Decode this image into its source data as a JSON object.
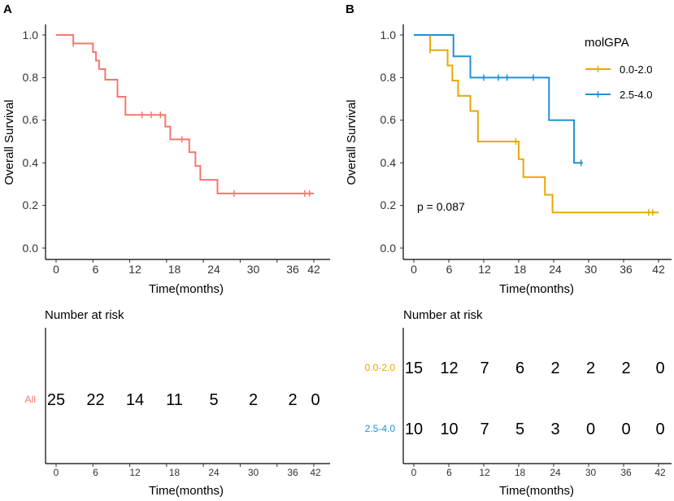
{
  "chart_data": [
    {
      "panel": "A",
      "type": "line",
      "subtype": "kaplan-meier",
      "xlabel": "Time(months)",
      "ylabel": "Overall Survival",
      "xlim": [
        0,
        42
      ],
      "ylim": [
        0,
        1
      ],
      "xticks": [
        0,
        6,
        12,
        18,
        24,
        30,
        36,
        42
      ],
      "yticks": [
        0.0,
        0.2,
        0.4,
        0.6,
        0.8,
        1.0
      ],
      "ytick_labels": [
        "0.0",
        "0.2",
        "0.4",
        "0.6",
        "0.8",
        "1.0"
      ],
      "series": [
        {
          "name": "All",
          "color": "#F8766D",
          "steps": [
            [
              0,
              1.0
            ],
            [
              2.8,
              0.96
            ],
            [
              6.0,
              0.92
            ],
            [
              6.5,
              0.88
            ],
            [
              7.0,
              0.84
            ],
            [
              8.0,
              0.79
            ],
            [
              10.0,
              0.71
            ],
            [
              11.3,
              0.625
            ],
            [
              17.8,
              0.57
            ],
            [
              18.6,
              0.51
            ],
            [
              21.7,
              0.45
            ],
            [
              22.7,
              0.385
            ],
            [
              23.5,
              0.32
            ],
            [
              26.3,
              0.256
            ],
            [
              42.0,
              0.256
            ]
          ],
          "censor": [
            [
              2.8,
              0.96
            ],
            [
              14.0,
              0.625
            ],
            [
              15.5,
              0.625
            ],
            [
              17.0,
              0.625
            ],
            [
              20.5,
              0.51
            ],
            [
              29.0,
              0.256
            ],
            [
              40.5,
              0.256
            ],
            [
              41.3,
              0.256
            ]
          ]
        }
      ],
      "risk_table": {
        "title": "Number at risk",
        "xlabel": "Time(months)",
        "rows": [
          {
            "label": "All",
            "color": "#F8766D",
            "counts": [
              "25",
              "22",
              "14",
              "11",
              "5",
              "2",
              "2",
              "0"
            ]
          }
        ]
      }
    },
    {
      "panel": "B",
      "type": "line",
      "subtype": "kaplan-meier",
      "xlabel": "Time(months)",
      "ylabel": "Overall Survival",
      "xlim": [
        0,
        42
      ],
      "ylim": [
        0,
        1
      ],
      "xticks": [
        0,
        6,
        12,
        18,
        24,
        30,
        36,
        42
      ],
      "yticks": [
        0.0,
        0.2,
        0.4,
        0.6,
        0.8,
        1.0
      ],
      "ytick_labels": [
        "0.0",
        "0.2",
        "0.4",
        "0.6",
        "0.8",
        "1.0"
      ],
      "legend_title": "molGPA",
      "legend_position": "top-right",
      "annotation": "p = 0.087",
      "series": [
        {
          "name": "0.0-2.0",
          "color": "#E7A800",
          "steps": [
            [
              0,
              1.0
            ],
            [
              2.8,
              0.929
            ],
            [
              5.8,
              0.857
            ],
            [
              6.6,
              0.786
            ],
            [
              7.6,
              0.714
            ],
            [
              9.7,
              0.643
            ],
            [
              11.0,
              0.5
            ],
            [
              18.0,
              0.417
            ],
            [
              18.8,
              0.333
            ],
            [
              22.5,
              0.25
            ],
            [
              23.8,
              0.167
            ],
            [
              42.0,
              0.167
            ]
          ],
          "censor": [
            [
              2.8,
              0.929
            ],
            [
              17.5,
              0.5
            ],
            [
              40.3,
              0.167
            ],
            [
              41.0,
              0.167
            ]
          ]
        },
        {
          "name": "2.5-4.0",
          "color": "#2490D0",
          "steps": [
            [
              0,
              1.0
            ],
            [
              6.8,
              0.9
            ],
            [
              9.7,
              0.8
            ],
            [
              23.2,
              0.6
            ],
            [
              27.5,
              0.4
            ],
            [
              29.0,
              0.4
            ]
          ],
          "censor": [
            [
              12.0,
              0.8
            ],
            [
              14.5,
              0.8
            ],
            [
              16.0,
              0.8
            ],
            [
              20.5,
              0.8
            ],
            [
              28.7,
              0.4
            ]
          ]
        }
      ],
      "risk_table": {
        "title": "Number at risk",
        "xlabel": "Time(months)",
        "rows": [
          {
            "label": "0.0-2.0",
            "color": "#E7A800",
            "counts": [
              "15",
              "12",
              "7",
              "6",
              "2",
              "2",
              "2",
              "0"
            ]
          },
          {
            "label": "2.5-4.0",
            "color": "#2490D0",
            "counts": [
              "10",
              "10",
              "7",
              "5",
              "3",
              "0",
              "0",
              "0"
            ]
          }
        ]
      }
    }
  ]
}
